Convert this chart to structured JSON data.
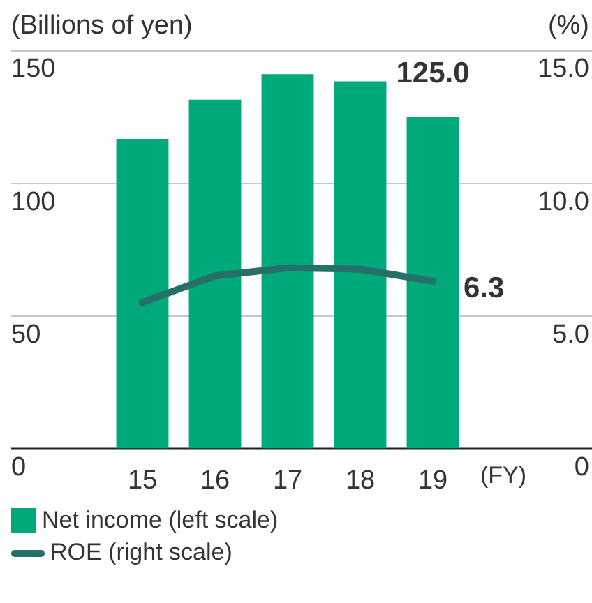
{
  "chart_data": {
    "type": "bar",
    "categories": [
      "15",
      "16",
      "17",
      "18",
      "19"
    ],
    "series": [
      {
        "name": "Net income (left scale)",
        "color": "#00a97a",
        "values": [
          116.6,
          131.4,
          141.0,
          138.3,
          125.0
        ],
        "value_labels": [
          null,
          null,
          null,
          null,
          "125.0"
        ]
      },
      {
        "name": "ROE (right scale)",
        "type": "line",
        "axis": "y2",
        "color": "#27706a",
        "values": [
          5.5,
          6.5,
          6.8,
          6.75,
          6.3
        ],
        "value_labels": [
          null,
          null,
          null,
          null,
          "6.3"
        ]
      }
    ],
    "ylabel": "(Billions of yen)",
    "y2label": "(%)",
    "ylim": [
      0,
      150
    ],
    "yticks": [
      0,
      50,
      100,
      150
    ],
    "y2lim": [
      0,
      15
    ],
    "y2ticks": [
      {
        "value": 0,
        "label": "0"
      },
      {
        "value": 5,
        "label": "5.0"
      },
      {
        "value": 10,
        "label": "10.0"
      },
      {
        "value": 15,
        "label": "15.0"
      }
    ],
    "annotations": [
      "(FY)"
    ],
    "grid": "y",
    "legend": "bottom",
    "marker": "none",
    "line_style": "solid"
  }
}
